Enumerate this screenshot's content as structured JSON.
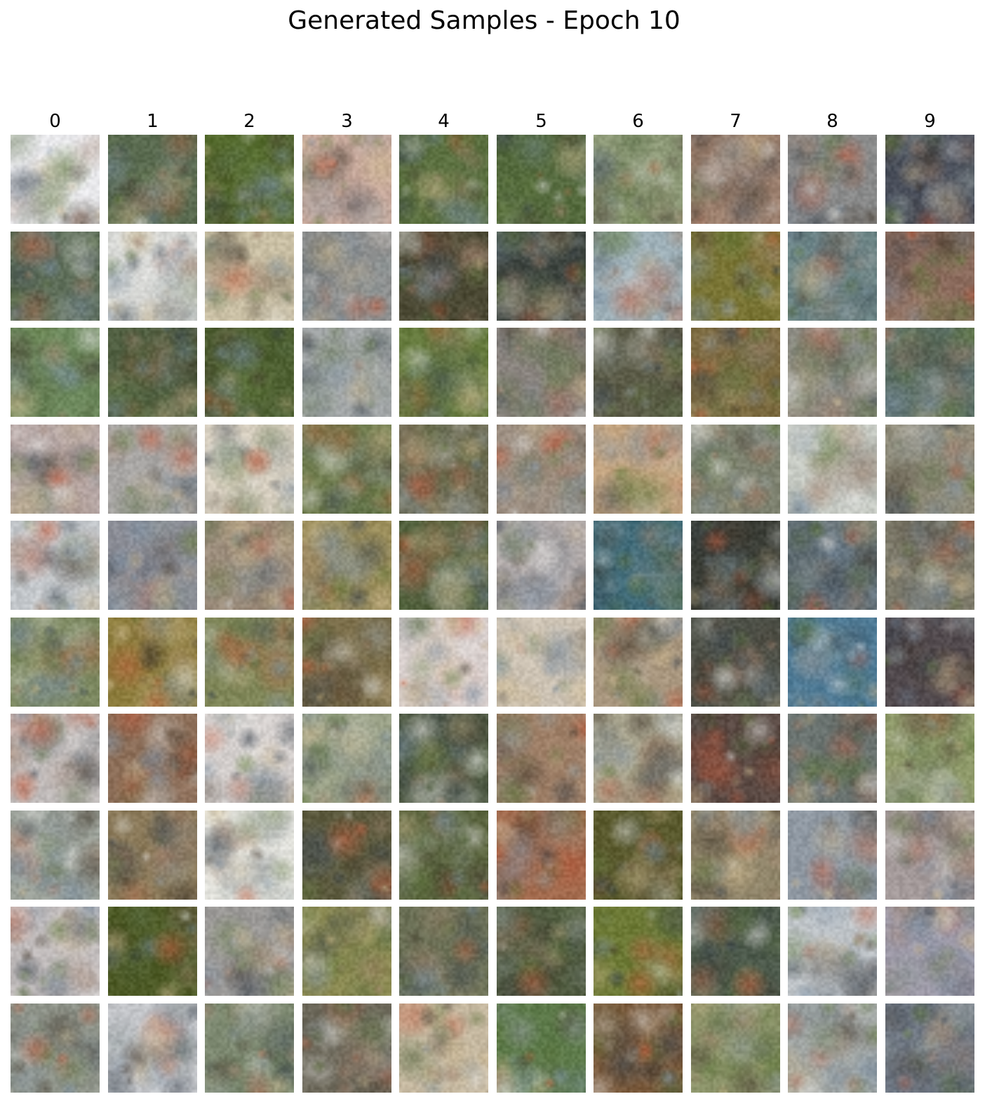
{
  "figure": {
    "title": "Generated Samples - Epoch 10",
    "column_labels": [
      "0",
      "1",
      "2",
      "3",
      "4",
      "5",
      "6",
      "7",
      "8",
      "9"
    ],
    "row_count": 10,
    "tiles": [
      [
        "#e9e9ec",
        "#5a6b50",
        "#556b2e",
        "#c7a99c",
        "#5b7040",
        "#546a3d",
        "#8e9a78",
        "#9b7f6e",
        "#8a8b8b",
        "#4a4f5b"
      ],
      [
        "#5f6f5a",
        "#d8d9d6",
        "#c9bfa4",
        "#8d8f8f",
        "#4c4a35",
        "#3e4540",
        "#9eb0b8",
        "#7a7535",
        "#6b8485",
        "#8a6a5c"
      ],
      [
        "#6e8a5e",
        "#4f5e40",
        "#4e6032",
        "#a3a7a8",
        "#667b3e",
        "#8b8580",
        "#5c5c48",
        "#7b6a3f",
        "#8d8c84",
        "#5b6e64"
      ],
      [
        "#b7a8a6",
        "#a8a6a4",
        "#d7cfc0",
        "#6f7c4e",
        "#6c6a52",
        "#9d8f82",
        "#c5a682",
        "#7e8270",
        "#c7cbc4",
        "#8e8a78"
      ],
      [
        "#c4c8cc",
        "#8d8f98",
        "#9c8d7c",
        "#9a8d5a",
        "#52603d",
        "#b4adac",
        "#3f6a78",
        "#3a3d36",
        "#5d6a70",
        "#7d7a6a"
      ],
      [
        "#7e8a62",
        "#8e7e3e",
        "#7f8658",
        "#7b6e4a",
        "#d8cfcd",
        "#cdc3b4",
        "#a8967e",
        "#50534a",
        "#4f7b96",
        "#524a4e"
      ],
      [
        "#c1bcbb",
        "#8c6e58",
        "#d4cfcd",
        "#9ba288",
        "#4f5a45",
        "#9f8068",
        "#aaa690",
        "#5b4a44",
        "#6a7370",
        "#8f9a6a"
      ],
      [
        "#9aa098",
        "#8b7a5a",
        "#e2e2dc",
        "#5c5a3e",
        "#5c6640",
        "#a36b4e",
        "#5a5a2e",
        "#92876c",
        "#8f98a2",
        "#a49a9a"
      ],
      [
        "#c1bcbc",
        "#4d5a26",
        "#9c9a98",
        "#8b8a52",
        "#6b7056",
        "#4f5a3f",
        "#6d7a36",
        "#4d5a4c",
        "#bfc4c8",
        "#9e9aa8"
      ],
      [
        "#8f948a",
        "#c2c4c8",
        "#7e8a72",
        "#6e6a5c",
        "#c5b8a0",
        "#5d7a4a",
        "#7a5a3c",
        "#8a9268",
        "#a3a8a6",
        "#6e7682"
      ]
    ]
  }
}
